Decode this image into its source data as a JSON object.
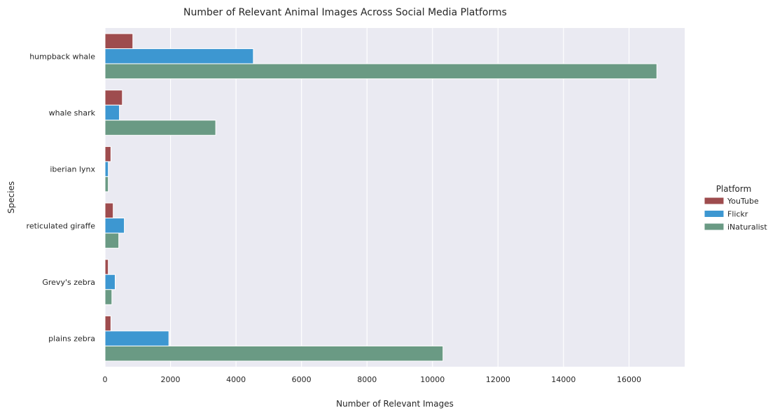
{
  "chart_data": {
    "type": "bar",
    "orientation": "horizontal",
    "title": "Number of Relevant Animal Images Across Social Media Platforms",
    "xlabel": "Number of Relevant Images",
    "ylabel": "Species",
    "xlim": [
      0,
      17700
    ],
    "xticks": [
      0,
      2000,
      4000,
      6000,
      8000,
      10000,
      12000,
      14000,
      16000
    ],
    "grid": true,
    "legend": {
      "title": "Platform",
      "placement": "right"
    },
    "categories": [
      "humpback whale",
      "whale shark",
      "iberian lynx",
      "reticulated giraffe",
      "Grevy's zebra",
      "plains zebra"
    ],
    "series": [
      {
        "name": "YouTube",
        "color": "#9e4c4e",
        "values": [
          850,
          530,
          180,
          250,
          100,
          180
        ]
      },
      {
        "name": "Flickr",
        "color": "#3d97d1",
        "values": [
          4530,
          440,
          100,
          590,
          310,
          1950
        ]
      },
      {
        "name": "iNaturalist",
        "color": "#6a9a84",
        "values": [
          16850,
          3380,
          100,
          420,
          210,
          10320
        ]
      }
    ]
  }
}
